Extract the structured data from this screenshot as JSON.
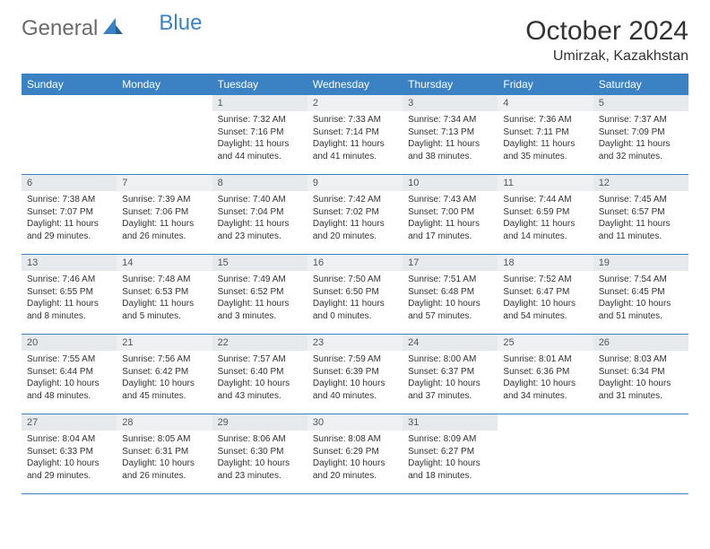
{
  "brand": {
    "part1": "General",
    "part2": "Blue"
  },
  "title": "October 2024",
  "location": "Umirzak, Kazakhstan",
  "colors": {
    "header_bg": "#3b82c4",
    "header_text": "#ffffff",
    "daynum_bg": "#eef0f2",
    "text": "#333333",
    "logo_gray": "#6b6b6b",
    "logo_blue": "#3b82c4"
  },
  "weekdays": [
    "Sunday",
    "Monday",
    "Tuesday",
    "Wednesday",
    "Thursday",
    "Friday",
    "Saturday"
  ],
  "weeks": [
    [
      {
        "day": "",
        "sunrise": "",
        "sunset": "",
        "daylight": ""
      },
      {
        "day": "",
        "sunrise": "",
        "sunset": "",
        "daylight": ""
      },
      {
        "day": "1",
        "sunrise": "Sunrise: 7:32 AM",
        "sunset": "Sunset: 7:16 PM",
        "daylight": "Daylight: 11 hours and 44 minutes."
      },
      {
        "day": "2",
        "sunrise": "Sunrise: 7:33 AM",
        "sunset": "Sunset: 7:14 PM",
        "daylight": "Daylight: 11 hours and 41 minutes."
      },
      {
        "day": "3",
        "sunrise": "Sunrise: 7:34 AM",
        "sunset": "Sunset: 7:13 PM",
        "daylight": "Daylight: 11 hours and 38 minutes."
      },
      {
        "day": "4",
        "sunrise": "Sunrise: 7:36 AM",
        "sunset": "Sunset: 7:11 PM",
        "daylight": "Daylight: 11 hours and 35 minutes."
      },
      {
        "day": "5",
        "sunrise": "Sunrise: 7:37 AM",
        "sunset": "Sunset: 7:09 PM",
        "daylight": "Daylight: 11 hours and 32 minutes."
      }
    ],
    [
      {
        "day": "6",
        "sunrise": "Sunrise: 7:38 AM",
        "sunset": "Sunset: 7:07 PM",
        "daylight": "Daylight: 11 hours and 29 minutes."
      },
      {
        "day": "7",
        "sunrise": "Sunrise: 7:39 AM",
        "sunset": "Sunset: 7:06 PM",
        "daylight": "Daylight: 11 hours and 26 minutes."
      },
      {
        "day": "8",
        "sunrise": "Sunrise: 7:40 AM",
        "sunset": "Sunset: 7:04 PM",
        "daylight": "Daylight: 11 hours and 23 minutes."
      },
      {
        "day": "9",
        "sunrise": "Sunrise: 7:42 AM",
        "sunset": "Sunset: 7:02 PM",
        "daylight": "Daylight: 11 hours and 20 minutes."
      },
      {
        "day": "10",
        "sunrise": "Sunrise: 7:43 AM",
        "sunset": "Sunset: 7:00 PM",
        "daylight": "Daylight: 11 hours and 17 minutes."
      },
      {
        "day": "11",
        "sunrise": "Sunrise: 7:44 AM",
        "sunset": "Sunset: 6:59 PM",
        "daylight": "Daylight: 11 hours and 14 minutes."
      },
      {
        "day": "12",
        "sunrise": "Sunrise: 7:45 AM",
        "sunset": "Sunset: 6:57 PM",
        "daylight": "Daylight: 11 hours and 11 minutes."
      }
    ],
    [
      {
        "day": "13",
        "sunrise": "Sunrise: 7:46 AM",
        "sunset": "Sunset: 6:55 PM",
        "daylight": "Daylight: 11 hours and 8 minutes."
      },
      {
        "day": "14",
        "sunrise": "Sunrise: 7:48 AM",
        "sunset": "Sunset: 6:53 PM",
        "daylight": "Daylight: 11 hours and 5 minutes."
      },
      {
        "day": "15",
        "sunrise": "Sunrise: 7:49 AM",
        "sunset": "Sunset: 6:52 PM",
        "daylight": "Daylight: 11 hours and 3 minutes."
      },
      {
        "day": "16",
        "sunrise": "Sunrise: 7:50 AM",
        "sunset": "Sunset: 6:50 PM",
        "daylight": "Daylight: 11 hours and 0 minutes."
      },
      {
        "day": "17",
        "sunrise": "Sunrise: 7:51 AM",
        "sunset": "Sunset: 6:48 PM",
        "daylight": "Daylight: 10 hours and 57 minutes."
      },
      {
        "day": "18",
        "sunrise": "Sunrise: 7:52 AM",
        "sunset": "Sunset: 6:47 PM",
        "daylight": "Daylight: 10 hours and 54 minutes."
      },
      {
        "day": "19",
        "sunrise": "Sunrise: 7:54 AM",
        "sunset": "Sunset: 6:45 PM",
        "daylight": "Daylight: 10 hours and 51 minutes."
      }
    ],
    [
      {
        "day": "20",
        "sunrise": "Sunrise: 7:55 AM",
        "sunset": "Sunset: 6:44 PM",
        "daylight": "Daylight: 10 hours and 48 minutes."
      },
      {
        "day": "21",
        "sunrise": "Sunrise: 7:56 AM",
        "sunset": "Sunset: 6:42 PM",
        "daylight": "Daylight: 10 hours and 45 minutes."
      },
      {
        "day": "22",
        "sunrise": "Sunrise: 7:57 AM",
        "sunset": "Sunset: 6:40 PM",
        "daylight": "Daylight: 10 hours and 43 minutes."
      },
      {
        "day": "23",
        "sunrise": "Sunrise: 7:59 AM",
        "sunset": "Sunset: 6:39 PM",
        "daylight": "Daylight: 10 hours and 40 minutes."
      },
      {
        "day": "24",
        "sunrise": "Sunrise: 8:00 AM",
        "sunset": "Sunset: 6:37 PM",
        "daylight": "Daylight: 10 hours and 37 minutes."
      },
      {
        "day": "25",
        "sunrise": "Sunrise: 8:01 AM",
        "sunset": "Sunset: 6:36 PM",
        "daylight": "Daylight: 10 hours and 34 minutes."
      },
      {
        "day": "26",
        "sunrise": "Sunrise: 8:03 AM",
        "sunset": "Sunset: 6:34 PM",
        "daylight": "Daylight: 10 hours and 31 minutes."
      }
    ],
    [
      {
        "day": "27",
        "sunrise": "Sunrise: 8:04 AM",
        "sunset": "Sunset: 6:33 PM",
        "daylight": "Daylight: 10 hours and 29 minutes."
      },
      {
        "day": "28",
        "sunrise": "Sunrise: 8:05 AM",
        "sunset": "Sunset: 6:31 PM",
        "daylight": "Daylight: 10 hours and 26 minutes."
      },
      {
        "day": "29",
        "sunrise": "Sunrise: 8:06 AM",
        "sunset": "Sunset: 6:30 PM",
        "daylight": "Daylight: 10 hours and 23 minutes."
      },
      {
        "day": "30",
        "sunrise": "Sunrise: 8:08 AM",
        "sunset": "Sunset: 6:29 PM",
        "daylight": "Daylight: 10 hours and 20 minutes."
      },
      {
        "day": "31",
        "sunrise": "Sunrise: 8:09 AM",
        "sunset": "Sunset: 6:27 PM",
        "daylight": "Daylight: 10 hours and 18 minutes."
      },
      {
        "day": "",
        "sunrise": "",
        "sunset": "",
        "daylight": ""
      },
      {
        "day": "",
        "sunrise": "",
        "sunset": "",
        "daylight": ""
      }
    ]
  ]
}
